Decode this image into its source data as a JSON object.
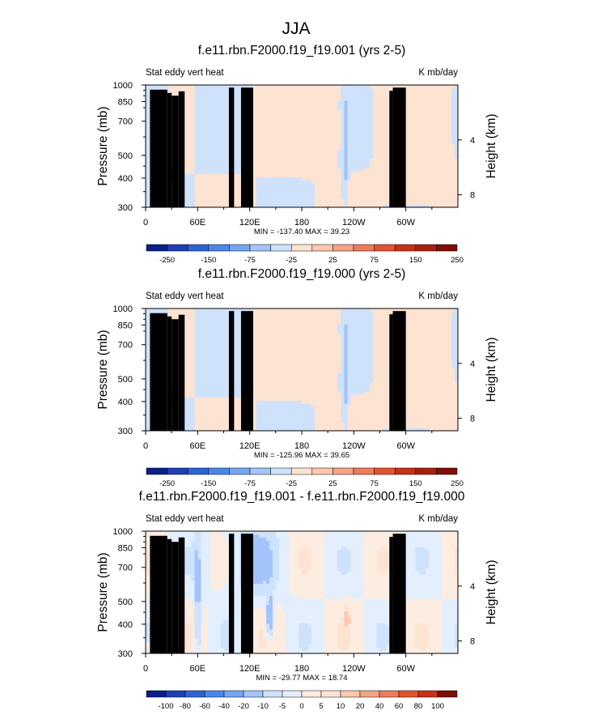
{
  "figure": {
    "title": "JJA"
  },
  "chart_data": [
    {
      "type": "heatmap",
      "title": "f.e11.rbn.F2000.f19_f19.001 (yrs 2-5)",
      "left_label": "Stat eddy vert heat",
      "right_label": "K mb/day",
      "ylabel": "Pressure (mb)",
      "ylabel_right": "Height (km)",
      "x_ticks": [
        {
          "lon": 0,
          "label": "0"
        },
        {
          "lon": 60,
          "label": "60E"
        },
        {
          "lon": 120,
          "label": "120E"
        },
        {
          "lon": 180,
          "label": "180"
        },
        {
          "lon": 240,
          "label": "120W"
        },
        {
          "lon": 300,
          "label": "60W"
        }
      ],
      "y_ticks": [
        {
          "p": 300,
          "label": "300"
        },
        {
          "p": 400,
          "label": "400"
        },
        {
          "p": 500,
          "label": "500"
        },
        {
          "p": 700,
          "label": "700"
        },
        {
          "p": 850,
          "label": "850"
        },
        {
          "p": 1000,
          "label": "1000"
        }
      ],
      "height_ticks": [
        {
          "km": 8,
          "label": "8"
        },
        {
          "km": 4,
          "label": "4"
        }
      ],
      "xlim": [
        0,
        360
      ],
      "ylim": [
        1000,
        300
      ],
      "stats_text": "MIN = -137.40  MAX =  39.23",
      "min": -137.4,
      "max": 39.23,
      "colorbar": {
        "labels": [
          "-250",
          "-150",
          "-75",
          "-25",
          "25",
          "75",
          "150",
          "250"
        ],
        "colors": [
          "#0b1e8c",
          "#1f3fb8",
          "#2d63d8",
          "#4b86ec",
          "#74a6f4",
          "#a2c4fa",
          "#cfe2fb",
          "#fde3d2",
          "#fbc7ad",
          "#f5a486",
          "#ee7c5c",
          "#e4542f",
          "#c93016",
          "#a81e0e",
          "#7e0e06"
        ]
      },
      "field_scale": 1
    },
    {
      "type": "heatmap",
      "title": "f.e11.rbn.F2000.f19_f19.000 (yrs 2-5)",
      "left_label": "Stat eddy vert heat",
      "right_label": "K mb/day",
      "ylabel": "Pressure (mb)",
      "ylabel_right": "Height (km)",
      "x_ticks": [
        {
          "lon": 0,
          "label": "0"
        },
        {
          "lon": 60,
          "label": "60E"
        },
        {
          "lon": 120,
          "label": "120E"
        },
        {
          "lon": 180,
          "label": "180"
        },
        {
          "lon": 240,
          "label": "120W"
        },
        {
          "lon": 300,
          "label": "60W"
        }
      ],
      "y_ticks": [
        {
          "p": 300,
          "label": "300"
        },
        {
          "p": 400,
          "label": "400"
        },
        {
          "p": 500,
          "label": "500"
        },
        {
          "p": 700,
          "label": "700"
        },
        {
          "p": 850,
          "label": "850"
        },
        {
          "p": 1000,
          "label": "1000"
        }
      ],
      "height_ticks": [
        {
          "km": 8,
          "label": "8"
        },
        {
          "km": 4,
          "label": "4"
        }
      ],
      "xlim": [
        0,
        360
      ],
      "ylim": [
        1000,
        300
      ],
      "stats_text": "MIN = -125.96  MAX =  39.65",
      "min": -125.96,
      "max": 39.65,
      "colorbar": {
        "labels": [
          "-250",
          "-150",
          "-75",
          "-25",
          "25",
          "75",
          "150",
          "250"
        ],
        "colors": [
          "#0b1e8c",
          "#1f3fb8",
          "#2d63d8",
          "#4b86ec",
          "#74a6f4",
          "#a2c4fa",
          "#cfe2fb",
          "#fde3d2",
          "#fbc7ad",
          "#f5a486",
          "#ee7c5c",
          "#e4542f",
          "#c93016",
          "#a81e0e",
          "#7e0e06"
        ]
      },
      "field_scale": 1
    },
    {
      "type": "heatmap",
      "title": "f.e11.rbn.F2000.f19_f19.001 - f.e11.rbn.F2000.f19_f19.000",
      "left_label": "Stat eddy vert heat",
      "right_label": "K mb/day",
      "ylabel": "Pressure (mb)",
      "ylabel_right": "Height (km)",
      "x_ticks": [
        {
          "lon": 0,
          "label": "0"
        },
        {
          "lon": 60,
          "label": "60E"
        },
        {
          "lon": 120,
          "label": "120E"
        },
        {
          "lon": 180,
          "label": "180"
        },
        {
          "lon": 240,
          "label": "120W"
        },
        {
          "lon": 300,
          "label": "60W"
        }
      ],
      "y_ticks": [
        {
          "p": 300,
          "label": "300"
        },
        {
          "p": 400,
          "label": "400"
        },
        {
          "p": 500,
          "label": "500"
        },
        {
          "p": 700,
          "label": "700"
        },
        {
          "p": 850,
          "label": "850"
        },
        {
          "p": 1000,
          "label": "1000"
        }
      ],
      "height_ticks": [
        {
          "km": 8,
          "label": "8"
        },
        {
          "km": 4,
          "label": "4"
        }
      ],
      "xlim": [
        0,
        360
      ],
      "ylim": [
        1000,
        300
      ],
      "stats_text": "MIN = -29.77  MAX =  18.74",
      "min": -29.77,
      "max": 18.74,
      "colorbar": {
        "labels": [
          "-100",
          "-80",
          "-60",
          "-40",
          "-20",
          "-10",
          "-5",
          "0",
          "5",
          "10",
          "20",
          "40",
          "60",
          "80",
          "100"
        ],
        "colors": [
          "#0b1e8c",
          "#1f3fb8",
          "#2d63d8",
          "#4b86ec",
          "#74a6f4",
          "#a2c4fa",
          "#cfe2fb",
          "#e3effd",
          "#fdece0",
          "#fde3d2",
          "#fbc7ad",
          "#f5a486",
          "#ee7c5c",
          "#e4542f",
          "#c93016",
          "#7e0e06"
        ]
      },
      "field_scale": 0.25
    }
  ]
}
